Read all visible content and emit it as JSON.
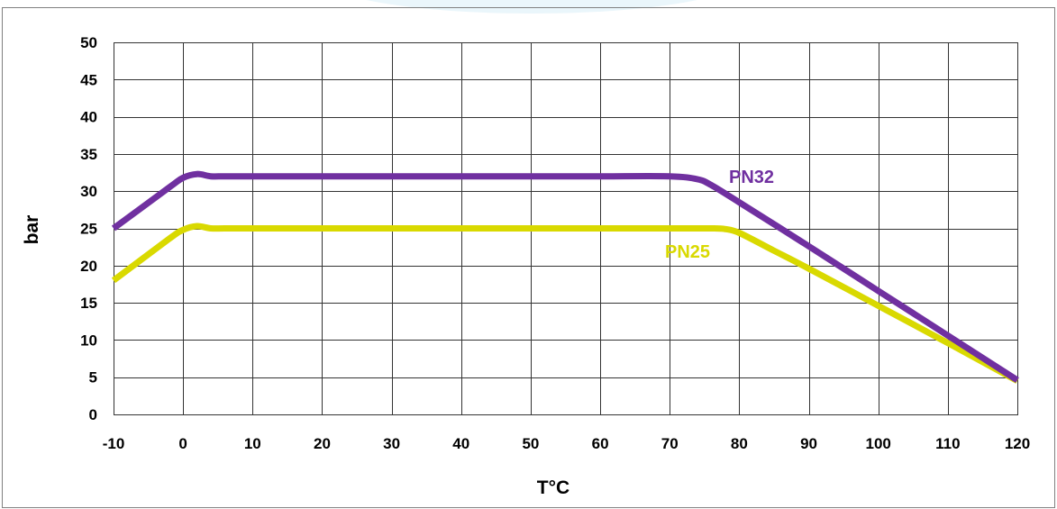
{
  "chart_data": {
    "type": "line",
    "xlabel": "T°C",
    "ylabel": "bar",
    "xlim": [
      -10,
      120
    ],
    "ylim": [
      0,
      50
    ],
    "x_ticks": [
      -10,
      0,
      10,
      20,
      30,
      40,
      50,
      60,
      70,
      80,
      90,
      100,
      110,
      120
    ],
    "y_ticks": [
      0,
      5,
      10,
      15,
      20,
      25,
      30,
      35,
      40,
      45,
      50
    ],
    "grid": true,
    "series": [
      {
        "name": "PN32",
        "color": "#7030a0",
        "x": [
          -10,
          -2,
          0,
          2,
          4,
          6,
          10,
          20,
          30,
          40,
          50,
          60,
          70,
          74,
          76,
          80,
          90,
          100,
          110,
          120
        ],
        "y": [
          25,
          30.5,
          31.8,
          32.3,
          32,
          32,
          32,
          32,
          32,
          32,
          32,
          32,
          32,
          31.6,
          30.8,
          28.5,
          22.6,
          16.6,
          10.6,
          4.6
        ]
      },
      {
        "name": "PN25",
        "color": "#d9d900",
        "x": [
          -10,
          -2,
          0,
          2,
          4,
          6,
          10,
          20,
          30,
          40,
          50,
          60,
          70,
          76,
          78,
          80,
          85,
          90,
          100,
          110,
          120
        ],
        "y": [
          18,
          23.6,
          24.8,
          25.3,
          25,
          25,
          25,
          25,
          25,
          25,
          25,
          25,
          25,
          25,
          24.9,
          24.4,
          22,
          19.6,
          14.6,
          9.6,
          4.5
        ]
      }
    ]
  }
}
